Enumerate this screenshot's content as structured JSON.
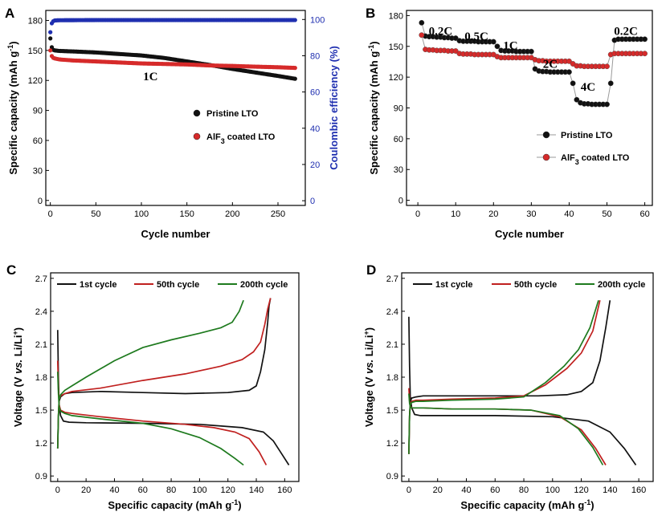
{
  "chart_data": [
    {
      "id": "A",
      "panel_label": "A",
      "type": "scatter",
      "xlabel": "Cycle number",
      "ylabel": "Specific capacity (mAh g",
      "ylabel_sup": "-1",
      "ylabel_end": ")",
      "y2label": "Coulombic efficiency (%)",
      "xlim": [
        -5,
        280
      ],
      "ylim": [
        -5,
        190
      ],
      "y2lim": [
        -2.6,
        105
      ],
      "xticks": [
        0,
        50,
        100,
        150,
        200,
        250
      ],
      "xtick_labels": [
        "0",
        "50",
        "100",
        "150",
        "200",
        "250"
      ],
      "yticks": [
        0,
        30,
        60,
        90,
        120,
        150,
        180
      ],
      "ytick_labels": [
        "0",
        "30",
        "60",
        "90",
        "120",
        "150",
        "180"
      ],
      "y2ticks": [
        0,
        20,
        40,
        60,
        80,
        100
      ],
      "y2tick_labels": [
        "0",
        "20",
        "40",
        "60",
        "80",
        "100"
      ],
      "annotation": "1C",
      "annotation_at": [
        110,
        125
      ],
      "legend_position": "center-right",
      "series": [
        {
          "name": "Pristine LTO",
          "color": "#111111",
          "x": [
            0,
            2,
            5,
            10,
            25,
            50,
            75,
            100,
            125,
            150,
            175,
            200,
            225,
            250,
            270
          ],
          "y": [
            162,
            151,
            150,
            149.5,
            149,
            148,
            146.5,
            145,
            142.5,
            139,
            135.5,
            131.5,
            128,
            124.5,
            121.5
          ]
        },
        {
          "name": "AlF₃ coated LTO",
          "name_main": "AlF",
          "name_sub": "3",
          "name_tail": " coated LTO",
          "color": "#d62a2a",
          "x": [
            0,
            2,
            5,
            10,
            25,
            50,
            75,
            100,
            125,
            150,
            175,
            200,
            225,
            250,
            270
          ],
          "y": [
            150,
            143,
            142,
            141,
            140,
            139,
            138,
            137,
            136.5,
            136,
            135,
            134.5,
            133.8,
            133.2,
            132.5
          ]
        },
        {
          "name": "Coulombic efficiency",
          "color": "#1f2fb0",
          "axis": "right",
          "x": [
            0,
            1,
            2,
            3,
            5,
            10,
            50,
            100,
            150,
            200,
            250,
            270
          ],
          "y": [
            93,
            97,
            98.5,
            99,
            99.5,
            99.6,
            99.7,
            99.7,
            99.7,
            99.7,
            99.7,
            99.7
          ]
        }
      ]
    },
    {
      "id": "B",
      "panel_label": "B",
      "type": "scatter",
      "xlabel": "Cycle number",
      "ylabel": "Specific capacity (mAh g",
      "ylabel_sup": "-1",
      "ylabel_end": ")",
      "xlim": [
        -3,
        62
      ],
      "ylim": [
        -5,
        185
      ],
      "xticks": [
        0,
        10,
        20,
        30,
        40,
        50,
        60
      ],
      "xtick_labels": [
        "0",
        "10",
        "20",
        "30",
        "40",
        "50",
        "60"
      ],
      "yticks": [
        0,
        30,
        60,
        90,
        120,
        150,
        180
      ],
      "ytick_labels": [
        "0",
        "30",
        "60",
        "90",
        "120",
        "150",
        "180"
      ],
      "rate_labels": [
        {
          "text": "0.2C",
          "x": 6,
          "y": 161
        },
        {
          "text": "0.5C",
          "x": 15.5,
          "y": 156
        },
        {
          "text": "1C",
          "x": 24.5,
          "y": 147
        },
        {
          "text": "2C",
          "x": 35,
          "y": 129
        },
        {
          "text": "4C",
          "x": 45,
          "y": 107
        },
        {
          "text": "0.2C",
          "x": 55,
          "y": 161
        }
      ],
      "legend_position": "bottom-right",
      "series": [
        {
          "name": "Pristine LTO",
          "color": "#111111",
          "x": [
            1,
            2,
            3,
            4,
            5,
            6,
            7,
            8,
            9,
            10,
            11,
            12,
            13,
            14,
            15,
            16,
            17,
            18,
            19,
            20,
            21,
            22,
            23,
            24,
            25,
            26,
            27,
            28,
            29,
            30,
            31,
            32,
            33,
            34,
            35,
            36,
            37,
            38,
            39,
            40,
            41,
            42,
            43,
            44,
            45,
            46,
            47,
            48,
            49,
            50,
            51,
            52,
            53,
            54,
            55,
            56,
            57,
            58,
            59,
            60
          ],
          "y": [
            173,
            160,
            159.5,
            159.5,
            159,
            159,
            158.5,
            158.5,
            158,
            158,
            155.5,
            155,
            155,
            155,
            155,
            154.5,
            154.5,
            154.5,
            154.5,
            154.5,
            150,
            146,
            145.5,
            145.5,
            145.5,
            145,
            145,
            145,
            145,
            145,
            128,
            126,
            125.5,
            125.5,
            125,
            125,
            125,
            125,
            125,
            125,
            114,
            98,
            95,
            94,
            94,
            93.5,
            93.5,
            93.5,
            93.5,
            93.5,
            114,
            156,
            157,
            157,
            157,
            157,
            157,
            157,
            157,
            157
          ]
        },
        {
          "name": "AlF₃ coated LTO",
          "name_main": "AlF",
          "name_sub": "3",
          "name_tail": " coated LTO",
          "color": "#d62a2a",
          "x": [
            1,
            2,
            3,
            4,
            5,
            6,
            7,
            8,
            9,
            10,
            11,
            12,
            13,
            14,
            15,
            16,
            17,
            18,
            19,
            20,
            21,
            22,
            23,
            24,
            25,
            26,
            27,
            28,
            29,
            30,
            31,
            32,
            33,
            34,
            35,
            36,
            37,
            38,
            39,
            40,
            41,
            42,
            43,
            44,
            45,
            46,
            47,
            48,
            49,
            50,
            51,
            52,
            53,
            54,
            55,
            56,
            57,
            58,
            59,
            60
          ],
          "y": [
            161,
            147,
            146.5,
            146.5,
            146,
            146,
            146,
            145.5,
            145.5,
            145.5,
            143,
            142.5,
            142.5,
            142.5,
            142,
            142,
            142,
            142,
            142,
            142,
            140,
            139,
            139,
            139,
            139,
            139,
            139,
            139,
            139,
            139,
            137,
            136,
            136,
            135.5,
            135.5,
            135.5,
            135.5,
            135.5,
            135.5,
            135.5,
            133,
            131,
            131,
            130.5,
            130.5,
            130.5,
            130.5,
            130.5,
            130.5,
            130.5,
            142,
            143,
            143,
            143,
            143,
            143,
            143,
            143,
            143,
            143
          ]
        }
      ]
    },
    {
      "id": "C",
      "panel_label": "C",
      "type": "line",
      "xlabel": "Specific capacity (mAh g",
      "xlabel_sup": "-1",
      "xlabel_end": ")",
      "ylabel": "Voltage (V vs. Li/Li",
      "ylabel_sup": "+",
      "ylabel_end": ")",
      "xlim": [
        -5,
        170
      ],
      "ylim": [
        0.85,
        2.75
      ],
      "xticks": [
        0,
        20,
        40,
        60,
        80,
        100,
        120,
        140,
        160
      ],
      "xtick_labels": [
        "0",
        "20",
        "40",
        "60",
        "80",
        "100",
        "120",
        "140",
        "160"
      ],
      "yticks": [
        0.9,
        1.2,
        1.5,
        1.8,
        2.1,
        2.4,
        2.7
      ],
      "ytick_labels": [
        "0.9",
        "1.2",
        "1.5",
        "1.8",
        "2.1",
        "2.4",
        "2.7"
      ],
      "legend_position": "top",
      "series": [
        {
          "name": "1st cycle",
          "color": "#111111",
          "discharge": {
            "x": [
              0,
              0.5,
              1,
              2,
              4,
              8,
              20,
              60,
              100,
              130,
              145,
              152,
              158,
              163
            ],
            "y": [
              2.23,
              1.8,
              1.55,
              1.45,
              1.4,
              1.39,
              1.385,
              1.38,
              1.37,
              1.34,
              1.3,
              1.22,
              1.1,
              1.0
            ]
          },
          "charge": {
            "x": [
              0,
              0.5,
              1,
              2,
              5,
              10,
              30,
              60,
              90,
              120,
              135,
              140,
              143,
              146,
              148,
              149,
              150
            ],
            "y": [
              1.15,
              1.45,
              1.58,
              1.62,
              1.65,
              1.66,
              1.67,
              1.66,
              1.65,
              1.66,
              1.68,
              1.72,
              1.85,
              2.05,
              2.3,
              2.45,
              2.52
            ]
          }
        },
        {
          "name": "50th cycle",
          "color": "#c0201f",
          "discharge": {
            "x": [
              0,
              0.5,
              1,
              2,
              5,
              10,
              30,
              60,
              90,
              110,
              125,
              135,
              142,
              147
            ],
            "y": [
              1.95,
              1.7,
              1.55,
              1.5,
              1.48,
              1.47,
              1.44,
              1.4,
              1.37,
              1.34,
              1.3,
              1.24,
              1.12,
              1.0
            ]
          },
          "charge": {
            "x": [
              0,
              0.5,
              1,
              2,
              5,
              10,
              30,
              60,
              90,
              115,
              130,
              138,
              143,
              146,
              148,
              150
            ],
            "y": [
              1.15,
              1.45,
              1.6,
              1.63,
              1.65,
              1.67,
              1.7,
              1.77,
              1.83,
              1.9,
              1.96,
              2.03,
              2.12,
              2.28,
              2.42,
              2.52
            ]
          }
        },
        {
          "name": "200th cycle",
          "color": "#1e7a1e",
          "discharge": {
            "x": [
              0,
              0.5,
              1,
              2,
              5,
              10,
              30,
              60,
              80,
              100,
              115,
              125,
              131
            ],
            "y": [
              1.85,
              1.65,
              1.53,
              1.49,
              1.47,
              1.45,
              1.42,
              1.38,
              1.33,
              1.25,
              1.15,
              1.06,
              1.0
            ]
          },
          "charge": {
            "x": [
              0,
              0.5,
              1,
              2,
              5,
              10,
              20,
              40,
              60,
              80,
              100,
              115,
              123,
              128,
              131
            ],
            "y": [
              1.15,
              1.45,
              1.6,
              1.64,
              1.68,
              1.72,
              1.8,
              1.95,
              2.07,
              2.14,
              2.2,
              2.25,
              2.3,
              2.4,
              2.5
            ]
          }
        }
      ]
    },
    {
      "id": "D",
      "panel_label": "D",
      "type": "line",
      "xlabel": "Specific capacity (mAh g",
      "xlabel_sup": "-1",
      "xlabel_end": ")",
      "ylabel": "Voltage (V vs. Li/Li",
      "ylabel_sup": "+",
      "ylabel_end": ")",
      "xlim": [
        -5,
        170
      ],
      "ylim": [
        0.85,
        2.75
      ],
      "xticks": [
        0,
        20,
        40,
        60,
        80,
        100,
        120,
        140,
        160
      ],
      "xtick_labels": [
        "0",
        "20",
        "40",
        "60",
        "80",
        "100",
        "120",
        "140",
        "160"
      ],
      "yticks": [
        0.9,
        1.2,
        1.5,
        1.8,
        2.1,
        2.4,
        2.7
      ],
      "ytick_labels": [
        "0.9",
        "1.2",
        "1.5",
        "1.8",
        "2.1",
        "2.4",
        "2.7"
      ],
      "legend_position": "top",
      "series": [
        {
          "name": "1st cycle",
          "color": "#111111",
          "discharge": {
            "x": [
              0,
              0.5,
              1,
              2,
              4,
              8,
              20,
              60,
              100,
              125,
              140,
              150,
              158
            ],
            "y": [
              2.35,
              1.9,
              1.62,
              1.52,
              1.46,
              1.45,
              1.45,
              1.45,
              1.44,
              1.4,
              1.3,
              1.15,
              1.0
            ]
          },
          "charge": {
            "x": [
              0,
              0.5,
              1,
              2,
              5,
              10,
              30,
              60,
              90,
              110,
              120,
              128,
              133,
              137,
              140
            ],
            "y": [
              1.1,
              1.45,
              1.58,
              1.61,
              1.62,
              1.63,
              1.63,
              1.63,
              1.63,
              1.64,
              1.67,
              1.75,
              1.95,
              2.25,
              2.5
            ]
          }
        },
        {
          "name": "50th cycle",
          "color": "#c0201f",
          "discharge": {
            "x": [
              0,
              0.5,
              1,
              2,
              5,
              10,
              30,
              60,
              85,
              105,
              120,
              130,
              137
            ],
            "y": [
              1.7,
              1.58,
              1.54,
              1.52,
              1.52,
              1.52,
              1.51,
              1.51,
              1.5,
              1.44,
              1.32,
              1.15,
              1.0
            ]
          },
          "charge": {
            "x": [
              0,
              0.5,
              1,
              2,
              5,
              10,
              30,
              60,
              80,
              95,
              110,
              120,
              128,
              133
            ],
            "y": [
              1.1,
              1.45,
              1.55,
              1.58,
              1.59,
              1.59,
              1.6,
              1.61,
              1.63,
              1.73,
              1.88,
              2.02,
              2.22,
              2.5
            ]
          }
        },
        {
          "name": "200th cycle",
          "color": "#1e7a1e",
          "discharge": {
            "x": [
              0,
              0.5,
              1,
              2,
              5,
              10,
              30,
              60,
              85,
              105,
              118,
              128,
              135
            ],
            "y": [
              1.65,
              1.56,
              1.53,
              1.52,
              1.52,
              1.52,
              1.51,
              1.51,
              1.5,
              1.45,
              1.33,
              1.16,
              1.0
            ]
          },
          "charge": {
            "x": [
              0,
              0.5,
              1,
              2,
              5,
              10,
              30,
              60,
              80,
              95,
              108,
              118,
              126,
              132
            ],
            "y": [
              1.1,
              1.45,
              1.55,
              1.57,
              1.58,
              1.58,
              1.59,
              1.6,
              1.62,
              1.75,
              1.9,
              2.05,
              2.25,
              2.5
            ]
          }
        }
      ]
    }
  ]
}
